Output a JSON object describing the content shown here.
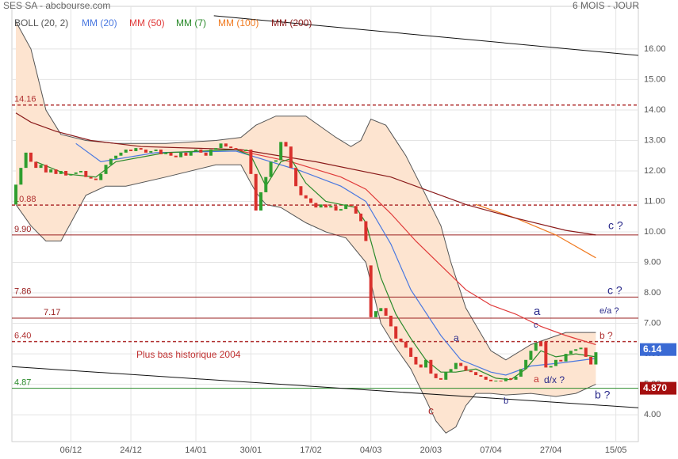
{
  "chart_data": {
    "type": "candlestick",
    "title": "SES SA - abcbourse.com",
    "subtitle": "6 MOIS - JOUR",
    "xlim": [
      -0.8,
      124.5
    ],
    "ylim": [
      3.12,
      17.4
    ],
    "yticks": [
      {
        "value": 4,
        "label": "4.00"
      },
      {
        "value": 5,
        "label": "5.00"
      },
      {
        "value": 6,
        "label": "6.00"
      },
      {
        "value": 7,
        "label": "7.00"
      },
      {
        "value": 8,
        "label": "8.00"
      },
      {
        "value": 9,
        "label": "9.00"
      },
      {
        "value": 10,
        "label": "10.00"
      },
      {
        "value": 11,
        "label": "11.00"
      },
      {
        "value": 12,
        "label": "12.00"
      },
      {
        "value": 13,
        "label": "13.00"
      },
      {
        "value": 14,
        "label": "14.00"
      },
      {
        "value": 15,
        "label": "15.00"
      },
      {
        "value": 16,
        "label": "16.00"
      }
    ],
    "xticks": [
      {
        "value": 11,
        "label": "06/12"
      },
      {
        "value": 23,
        "label": "24/12"
      },
      {
        "value": 36,
        "label": "14/01"
      },
      {
        "value": 47,
        "label": "30/01"
      },
      {
        "value": 59,
        "label": "17/02"
      },
      {
        "value": 71,
        "label": "04/03"
      },
      {
        "value": 83,
        "label": "20/03"
      },
      {
        "value": 95,
        "label": "07/04"
      },
      {
        "value": 107,
        "label": "27/04"
      },
      {
        "value": 120,
        "label": "15/05"
      }
    ],
    "grid": true,
    "candles": {
      "up_color": "#2f9e2f",
      "down_color": "#d9302c",
      "open": [
        10.9,
        11.55,
        12.1,
        12.6,
        12.3,
        12.1,
        12.2,
        11.95,
        12.05,
        11.9,
        12.0,
        11.85,
        11.9,
        11.95,
        12.0,
        11.8,
        11.75,
        11.7,
        11.9,
        12.2,
        12.4,
        12.5,
        12.6,
        12.7,
        12.65,
        12.75,
        12.7,
        12.6,
        12.65,
        12.7,
        12.55,
        12.6,
        12.5,
        12.45,
        12.6,
        12.5,
        12.65,
        12.7,
        12.6,
        12.5,
        12.7,
        12.75,
        12.9,
        12.8,
        12.75,
        12.7,
        12.65,
        12.7,
        11.9,
        10.7,
        11.3,
        11.8,
        12.3,
        12.35,
        12.95,
        12.8,
        12.1,
        11.5,
        11.2,
        11.1,
        10.95,
        10.8,
        10.9,
        10.8,
        10.85,
        10.7,
        10.75,
        10.9,
        10.85,
        10.6,
        10.35,
        8.9,
        7.2,
        7.4,
        7.5,
        7.25,
        6.9,
        6.5,
        6.4,
        6.2,
        5.9,
        5.65,
        5.55,
        5.8,
        5.35,
        5.2,
        5.15,
        5.4,
        5.5,
        5.7,
        5.6,
        5.45,
        5.4,
        5.3,
        5.25,
        5.15,
        5.1,
        5.12,
        5.1,
        5.2,
        5.15,
        5.25,
        5.5,
        5.8,
        6.1,
        6.4,
        6.4,
        5.55,
        5.6,
        5.8,
        5.75,
        6.0,
        6.1,
        6.15,
        6.2,
        5.9,
        5.65
      ],
      "close": [
        11.55,
        12.1,
        12.6,
        12.3,
        12.1,
        12.2,
        11.95,
        12.05,
        11.9,
        12.0,
        11.85,
        11.9,
        11.95,
        12.0,
        11.8,
        11.75,
        11.7,
        11.9,
        12.2,
        12.4,
        12.5,
        12.6,
        12.7,
        12.65,
        12.75,
        12.7,
        12.6,
        12.65,
        12.7,
        12.55,
        12.6,
        12.5,
        12.45,
        12.6,
        12.5,
        12.65,
        12.7,
        12.6,
        12.5,
        12.7,
        12.75,
        12.9,
        12.8,
        12.75,
        12.7,
        12.65,
        12.7,
        11.9,
        10.7,
        11.3,
        11.8,
        12.3,
        12.35,
        12.95,
        12.8,
        12.1,
        11.5,
        11.2,
        11.1,
        10.95,
        10.8,
        10.9,
        10.8,
        10.85,
        10.7,
        10.75,
        10.9,
        10.85,
        10.6,
        10.35,
        9.7,
        7.2,
        7.4,
        7.5,
        7.25,
        6.9,
        6.5,
        6.4,
        6.2,
        5.9,
        5.65,
        5.55,
        5.8,
        5.35,
        5.2,
        5.15,
        5.4,
        5.5,
        5.7,
        5.6,
        5.45,
        5.4,
        5.3,
        5.25,
        5.15,
        5.1,
        5.12,
        5.1,
        5.2,
        5.15,
        5.25,
        5.5,
        5.8,
        6.1,
        6.35,
        6.25,
        5.55,
        5.6,
        5.8,
        5.75,
        6.0,
        6.1,
        6.15,
        6.2,
        5.9,
        5.65,
        6.05
      ]
    },
    "bollinger": {
      "name": "BOLL (20, 2)",
      "color": "#555555",
      "fill": "#fde4d0",
      "upper": {
        "x": [
          0,
          3,
          6,
          9,
          14,
          20,
          30,
          40,
          45,
          48,
          52,
          58,
          64,
          67,
          69,
          71,
          74,
          78,
          82,
          85,
          87,
          90,
          95,
          98,
          103,
          110,
          116
        ],
        "values": [
          16.9,
          16.0,
          14.0,
          13.2,
          13.0,
          12.9,
          12.9,
          13.0,
          13.1,
          13.5,
          13.8,
          13.8,
          13.1,
          12.8,
          13.0,
          13.7,
          13.5,
          12.5,
          11.2,
          10.2,
          9.0,
          7.5,
          6.1,
          5.8,
          6.3,
          6.7,
          6.7
        ]
      },
      "lower": {
        "x": [
          0,
          3,
          6,
          9,
          11,
          14,
          18,
          22,
          30,
          40,
          45,
          48,
          50,
          53,
          58,
          62,
          66,
          70,
          73,
          76,
          79,
          82,
          84,
          86,
          88,
          90,
          92,
          95,
          98,
          103,
          108,
          112,
          116
        ],
        "values": [
          10.9,
          10.2,
          9.7,
          9.7,
          10.3,
          11.2,
          11.5,
          11.5,
          11.8,
          12.2,
          12.2,
          11.3,
          10.9,
          10.8,
          10.3,
          10.0,
          9.8,
          9.0,
          7.0,
          6.2,
          5.5,
          4.5,
          3.8,
          3.4,
          3.6,
          4.3,
          4.7,
          4.7,
          4.65,
          4.7,
          4.6,
          4.7,
          5.0
        ]
      }
    },
    "series": [
      {
        "name": "MM (20)",
        "color": "#4a78e0",
        "x": [
          12,
          17,
          28,
          44,
          51,
          57,
          65,
          70,
          75,
          79,
          85,
          89,
          95,
          98,
          103,
          109,
          116
        ],
        "values": [
          12.9,
          12.3,
          12.6,
          12.65,
          12.3,
          12.0,
          11.5,
          11.0,
          9.6,
          8.1,
          6.6,
          5.8,
          5.4,
          5.3,
          5.6,
          5.7,
          5.85
        ]
      },
      {
        "name": "MM (50)",
        "color": "#e03a3a",
        "x": [
          45,
          55,
          65,
          70,
          75,
          80,
          85,
          90,
          95,
          100,
          105,
          110,
          116
        ],
        "values": [
          12.65,
          12.3,
          11.8,
          11.4,
          10.6,
          9.7,
          8.9,
          8.1,
          7.6,
          7.3,
          6.9,
          6.6,
          6.3
        ]
      },
      {
        "name": "MM (7)",
        "color": "#2a8a2a",
        "x": [
          4,
          10,
          16,
          20,
          30,
          44,
          47,
          50,
          53,
          55,
          58,
          62,
          68,
          70,
          73,
          76,
          79,
          82,
          85,
          88,
          92,
          96,
          99,
          102,
          105,
          108,
          112,
          116
        ],
        "values": [
          12.3,
          11.9,
          11.8,
          12.3,
          12.6,
          12.7,
          12.5,
          11.5,
          12.3,
          12.4,
          11.6,
          11.0,
          10.8,
          10.3,
          8.5,
          7.3,
          6.5,
          5.8,
          5.4,
          5.4,
          5.5,
          5.2,
          5.15,
          5.5,
          6.1,
          5.9,
          6.0,
          5.9
        ]
      },
      {
        "name": "MM (100)",
        "color": "#f07a20",
        "x": [
          92,
          100,
          108,
          116
        ],
        "values": [
          10.9,
          10.45,
          9.9,
          9.15
        ]
      },
      {
        "name": "MM (200)",
        "color": "#8a1a1a",
        "x": [
          0,
          3,
          8,
          15,
          25,
          45,
          60,
          75,
          90,
          100,
          110,
          116
        ],
        "values": [
          13.9,
          13.6,
          13.3,
          13.0,
          12.8,
          12.7,
          12.3,
          11.8,
          10.9,
          10.45,
          10.05,
          9.9
        ]
      }
    ],
    "trendlines": [
      {
        "color": "#111111",
        "x": [
          39.6,
          124.5
        ],
        "values": [
          17.09,
          15.79
        ]
      },
      {
        "color": "#111111",
        "x": [
          -0.8,
          124.5
        ],
        "values": [
          5.58,
          4.23
        ]
      }
    ],
    "levels": [
      {
        "value": 14.16,
        "label": "14.16",
        "style": "dashed",
        "color": "#b03030"
      },
      {
        "value": 10.88,
        "label": "10.88",
        "style": "dashed",
        "color": "#b03030"
      },
      {
        "value": 9.9,
        "label": "9.90",
        "style": "solid",
        "color": "#9a2020"
      },
      {
        "value": 7.86,
        "label": "7.86",
        "style": "solid",
        "color": "#9a2020"
      },
      {
        "value": 7.17,
        "label": "7.17",
        "style": "solid",
        "color": "#9a2020"
      },
      {
        "value": 6.4,
        "label": "6.40",
        "style": "dashed",
        "color": "#b03030"
      },
      {
        "value": 4.87,
        "label": "4.87",
        "style": "solid",
        "color": "#2a8a2a"
      }
    ],
    "price_tags": [
      {
        "value": 6.14,
        "color": "#3a6ad4"
      },
      {
        "value": 4.87,
        "label": "4.870",
        "color": "#a50f0f"
      }
    ],
    "annotations": [
      {
        "text": "c ?",
        "color": "#2a2a8a"
      },
      {
        "text": "c ?",
        "color": "#2a2a8a"
      },
      {
        "text": "e/a ?",
        "color": "#2a2a8a"
      },
      {
        "text": "b ?",
        "color": "#b03030"
      },
      {
        "text": "a",
        "color": "#2a2a8a"
      },
      {
        "text": "c",
        "color": "#2a2a8a"
      },
      {
        "text": "a",
        "color": "#2a2a8a"
      },
      {
        "text": "d/x ?",
        "color": "#2a2a8a"
      },
      {
        "text": "a",
        "color": "#c03030"
      },
      {
        "text": "b",
        "color": "#2a2a8a"
      },
      {
        "text": "c",
        "color": "#b03030"
      },
      {
        "text": "b ?",
        "color": "#2a2a8a"
      },
      {
        "text": "Plus bas historique 2004",
        "color": "#c03030"
      }
    ]
  }
}
